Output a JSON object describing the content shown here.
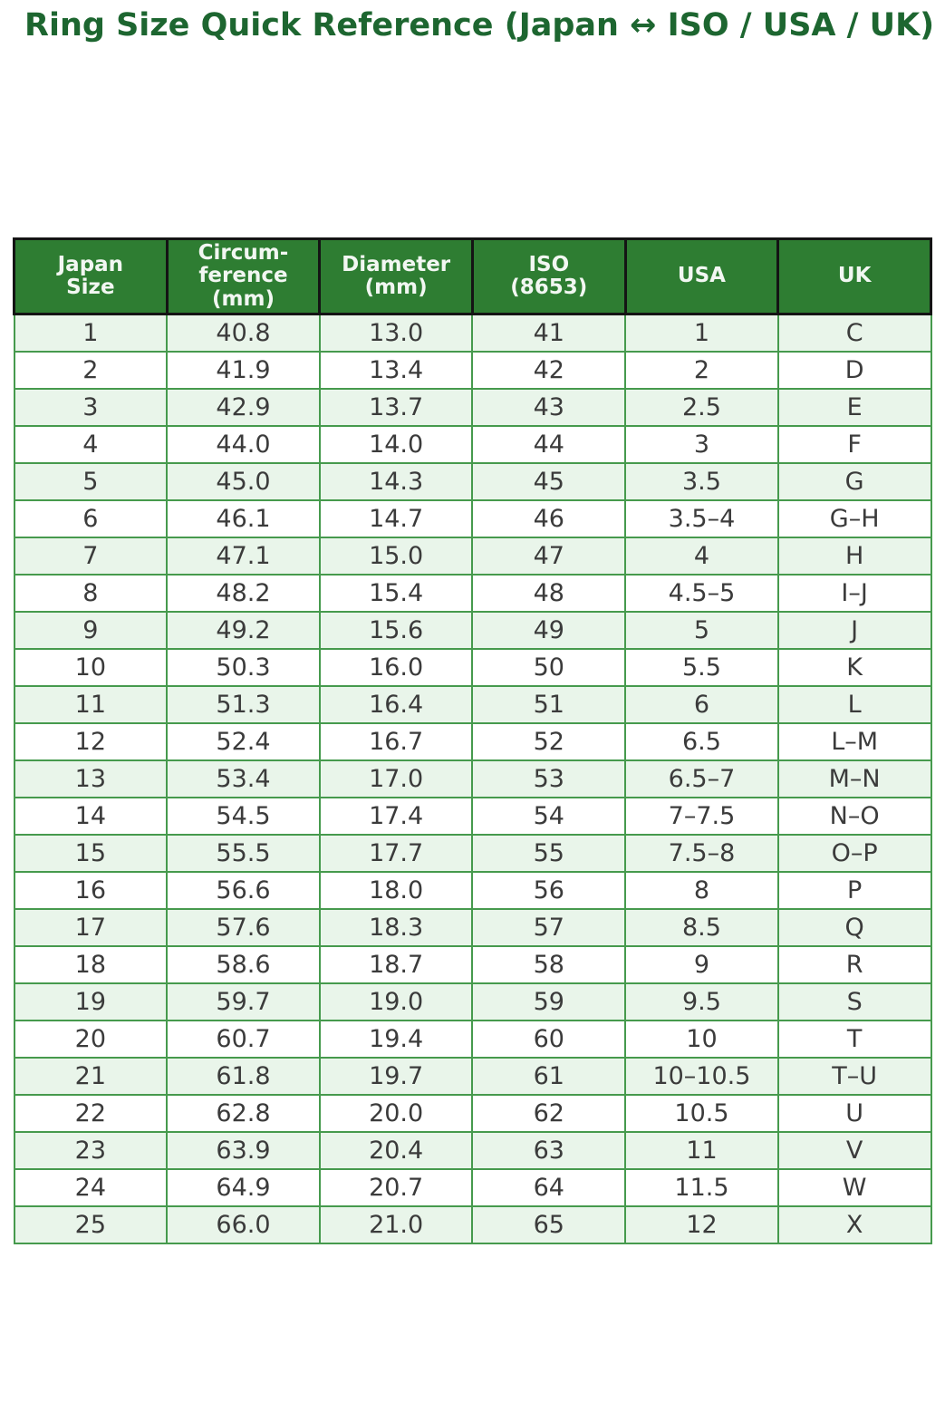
{
  "page": {
    "title": "Ring Size Quick Reference (Japan ↔ ISO / USA / UK)"
  },
  "colors": {
    "title_text": "#1d6630",
    "header_bg": "#2e7d32",
    "header_text": "#ffffff",
    "header_border": "#141414",
    "grid_border": "#469a4d",
    "row_alt_bg": "#e9f5ea",
    "row_bg": "#ffffff",
    "cell_text": "#3b3b3b",
    "page_bg": "#ffffff"
  },
  "chart_data": {
    "type": "table",
    "title": "Ring Size Quick Reference (Japan ↔ ISO / USA / UK)",
    "columns": [
      "Japan\nSize",
      "Circum-\nference\n(mm)",
      "Diameter\n(mm)",
      "ISO\n(8653)",
      "USA",
      "UK"
    ],
    "rows": [
      [
        "1",
        "40.8",
        "13.0",
        "41",
        "1",
        "C"
      ],
      [
        "2",
        "41.9",
        "13.4",
        "42",
        "2",
        "D"
      ],
      [
        "3",
        "42.9",
        "13.7",
        "43",
        "2.5",
        "E"
      ],
      [
        "4",
        "44.0",
        "14.0",
        "44",
        "3",
        "F"
      ],
      [
        "5",
        "45.0",
        "14.3",
        "45",
        "3.5",
        "G"
      ],
      [
        "6",
        "46.1",
        "14.7",
        "46",
        "3.5–4",
        "G–H"
      ],
      [
        "7",
        "47.1",
        "15.0",
        "47",
        "4",
        "H"
      ],
      [
        "8",
        "48.2",
        "15.4",
        "48",
        "4.5–5",
        "I–J"
      ],
      [
        "9",
        "49.2",
        "15.6",
        "49",
        "5",
        "J"
      ],
      [
        "10",
        "50.3",
        "16.0",
        "50",
        "5.5",
        "K"
      ],
      [
        "11",
        "51.3",
        "16.4",
        "51",
        "6",
        "L"
      ],
      [
        "12",
        "52.4",
        "16.7",
        "52",
        "6.5",
        "L–M"
      ],
      [
        "13",
        "53.4",
        "17.0",
        "53",
        "6.5–7",
        "M–N"
      ],
      [
        "14",
        "54.5",
        "17.4",
        "54",
        "7–7.5",
        "N–O"
      ],
      [
        "15",
        "55.5",
        "17.7",
        "55",
        "7.5–8",
        "O–P"
      ],
      [
        "16",
        "56.6",
        "18.0",
        "56",
        "8",
        "P"
      ],
      [
        "17",
        "57.6",
        "18.3",
        "57",
        "8.5",
        "Q"
      ],
      [
        "18",
        "58.6",
        "18.7",
        "58",
        "9",
        "R"
      ],
      [
        "19",
        "59.7",
        "19.0",
        "59",
        "9.5",
        "S"
      ],
      [
        "20",
        "60.7",
        "19.4",
        "60",
        "10",
        "T"
      ],
      [
        "21",
        "61.8",
        "19.7",
        "61",
        "10–10.5",
        "T–U"
      ],
      [
        "22",
        "62.8",
        "20.0",
        "62",
        "10.5",
        "U"
      ],
      [
        "23",
        "63.9",
        "20.4",
        "63",
        "11",
        "V"
      ],
      [
        "24",
        "64.9",
        "20.7",
        "64",
        "11.5",
        "W"
      ],
      [
        "25",
        "66.0",
        "21.0",
        "65",
        "12",
        "X"
      ]
    ],
    "layout": {
      "striped_rows": true,
      "stripe_start": "odd-rows-light-green",
      "column_count": 6,
      "row_count": 25
    }
  }
}
